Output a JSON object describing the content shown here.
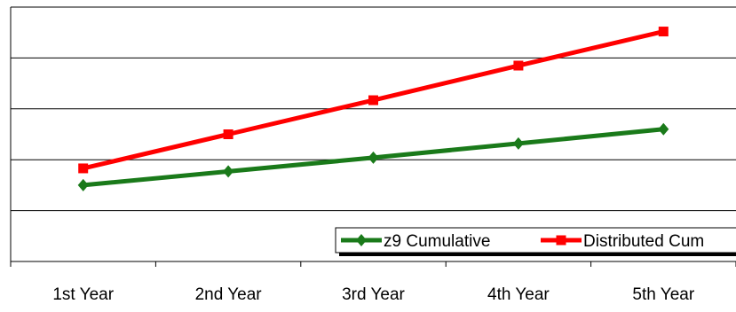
{
  "chart_data": {
    "type": "line",
    "categories": [
      "1st Year",
      "2nd Year",
      "3rd Year",
      "4th Year",
      "5th Year"
    ],
    "ylim": [
      0,
      5
    ],
    "grid": true,
    "legend_position": "bottom-right",
    "series": [
      {
        "name": "z9 Cumulative",
        "color": "#1a7a1a",
        "marker": "diamond",
        "values": [
          1.5,
          1.77,
          2.04,
          2.32,
          2.6
        ]
      },
      {
        "name": "Distributed Cum",
        "color": "#ff0000",
        "marker": "square",
        "values": [
          1.83,
          2.5,
          3.17,
          3.85,
          4.52
        ]
      }
    ]
  }
}
